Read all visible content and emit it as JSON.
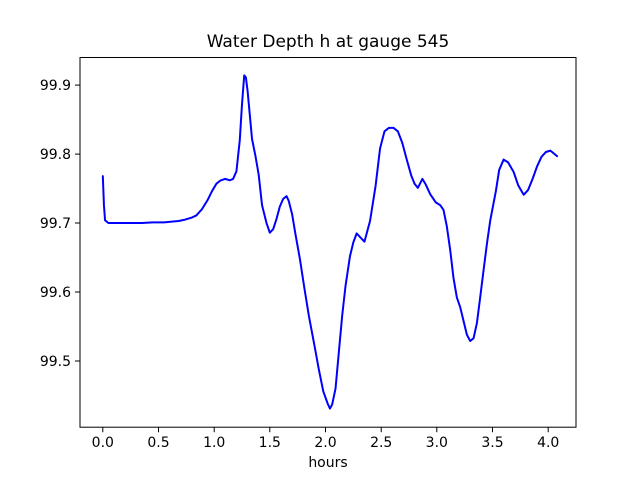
{
  "figure": {
    "background_color": "#ffffff",
    "spine_color": "#000000",
    "text_color": "#000000"
  },
  "chart_data": {
    "type": "line",
    "title": "Water Depth h at gauge 545",
    "xlabel": "hours",
    "ylabel": "",
    "grid": false,
    "legend": null,
    "xlim": [
      -0.205,
      4.25
    ],
    "ylim": [
      99.404,
      99.94
    ],
    "x_ticks": [
      0.0,
      0.5,
      1.0,
      1.5,
      2.0,
      2.5,
      3.0,
      3.5,
      4.0
    ],
    "x_tick_labels": [
      "0.0",
      "0.5",
      "1.0",
      "1.5",
      "2.0",
      "2.5",
      "3.0",
      "3.5",
      "4.0"
    ],
    "y_ticks": [
      99.5,
      99.6,
      99.7,
      99.8,
      99.9
    ],
    "y_tick_labels": [
      "99.5",
      "99.6",
      "99.7",
      "99.8",
      "99.9"
    ],
    "series": [
      {
        "name": "water-depth-h",
        "color": "#0000ff",
        "line_width": 2,
        "points": [
          [
            0.0,
            99.768
          ],
          [
            0.01,
            99.726
          ],
          [
            0.02,
            99.704
          ],
          [
            0.05,
            99.7
          ],
          [
            0.15,
            99.7
          ],
          [
            0.25,
            99.7
          ],
          [
            0.35,
            99.7
          ],
          [
            0.45,
            99.701
          ],
          [
            0.55,
            99.701
          ],
          [
            0.62,
            99.702
          ],
          [
            0.68,
            99.703
          ],
          [
            0.74,
            99.705
          ],
          [
            0.8,
            99.708
          ],
          [
            0.84,
            99.711
          ],
          [
            0.89,
            99.72
          ],
          [
            0.94,
            99.733
          ],
          [
            0.98,
            99.746
          ],
          [
            1.02,
            99.757
          ],
          [
            1.06,
            99.762
          ],
          [
            1.1,
            99.764
          ],
          [
            1.14,
            99.762
          ],
          [
            1.17,
            99.764
          ],
          [
            1.2,
            99.775
          ],
          [
            1.23,
            99.82
          ],
          [
            1.25,
            99.872
          ],
          [
            1.27,
            99.914
          ],
          [
            1.285,
            99.911
          ],
          [
            1.3,
            99.892
          ],
          [
            1.32,
            99.857
          ],
          [
            1.34,
            99.822
          ],
          [
            1.37,
            99.798
          ],
          [
            1.4,
            99.77
          ],
          [
            1.43,
            99.726
          ],
          [
            1.47,
            99.7
          ],
          [
            1.5,
            99.686
          ],
          [
            1.53,
            99.691
          ],
          [
            1.56,
            99.706
          ],
          [
            1.59,
            99.724
          ],
          [
            1.62,
            99.735
          ],
          [
            1.65,
            99.739
          ],
          [
            1.67,
            99.732
          ],
          [
            1.7,
            99.713
          ],
          [
            1.73,
            99.684
          ],
          [
            1.77,
            99.648
          ],
          [
            1.81,
            99.606
          ],
          [
            1.85,
            99.566
          ],
          [
            1.9,
            99.523
          ],
          [
            1.94,
            99.488
          ],
          [
            1.98,
            99.456
          ],
          [
            2.02,
            99.438
          ],
          [
            2.04,
            99.431
          ],
          [
            2.06,
            99.437
          ],
          [
            2.09,
            99.46
          ],
          [
            2.12,
            99.513
          ],
          [
            2.15,
            99.566
          ],
          [
            2.18,
            99.609
          ],
          [
            2.22,
            99.652
          ],
          [
            2.25,
            99.672
          ],
          [
            2.28,
            99.685
          ],
          [
            2.32,
            99.678
          ],
          [
            2.35,
            99.673
          ],
          [
            2.4,
            99.703
          ],
          [
            2.45,
            99.754
          ],
          [
            2.49,
            99.808
          ],
          [
            2.53,
            99.833
          ],
          [
            2.57,
            99.838
          ],
          [
            2.61,
            99.838
          ],
          [
            2.65,
            99.833
          ],
          [
            2.69,
            99.816
          ],
          [
            2.73,
            99.792
          ],
          [
            2.77,
            99.769
          ],
          [
            2.8,
            99.757
          ],
          [
            2.83,
            99.751
          ],
          [
            2.87,
            99.764
          ],
          [
            2.9,
            99.756
          ],
          [
            2.94,
            99.742
          ],
          [
            2.99,
            99.73
          ],
          [
            3.03,
            99.726
          ],
          [
            3.06,
            99.719
          ],
          [
            3.09,
            99.695
          ],
          [
            3.12,
            99.661
          ],
          [
            3.15,
            99.62
          ],
          [
            3.18,
            99.592
          ],
          [
            3.21,
            99.578
          ],
          [
            3.24,
            99.558
          ],
          [
            3.27,
            99.538
          ],
          [
            3.3,
            99.529
          ],
          [
            3.33,
            99.533
          ],
          [
            3.36,
            99.555
          ],
          [
            3.39,
            99.593
          ],
          [
            3.42,
            99.632
          ],
          [
            3.45,
            99.67
          ],
          [
            3.48,
            99.704
          ],
          [
            3.53,
            99.746
          ],
          [
            3.56,
            99.777
          ],
          [
            3.6,
            99.792
          ],
          [
            3.64,
            99.788
          ],
          [
            3.69,
            99.774
          ],
          [
            3.73,
            99.755
          ],
          [
            3.78,
            99.741
          ],
          [
            3.82,
            99.748
          ],
          [
            3.86,
            99.764
          ],
          [
            3.9,
            99.782
          ],
          [
            3.94,
            99.796
          ],
          [
            3.98,
            99.803
          ],
          [
            4.02,
            99.805
          ],
          [
            4.05,
            99.801
          ],
          [
            4.08,
            99.797
          ]
        ]
      }
    ]
  }
}
